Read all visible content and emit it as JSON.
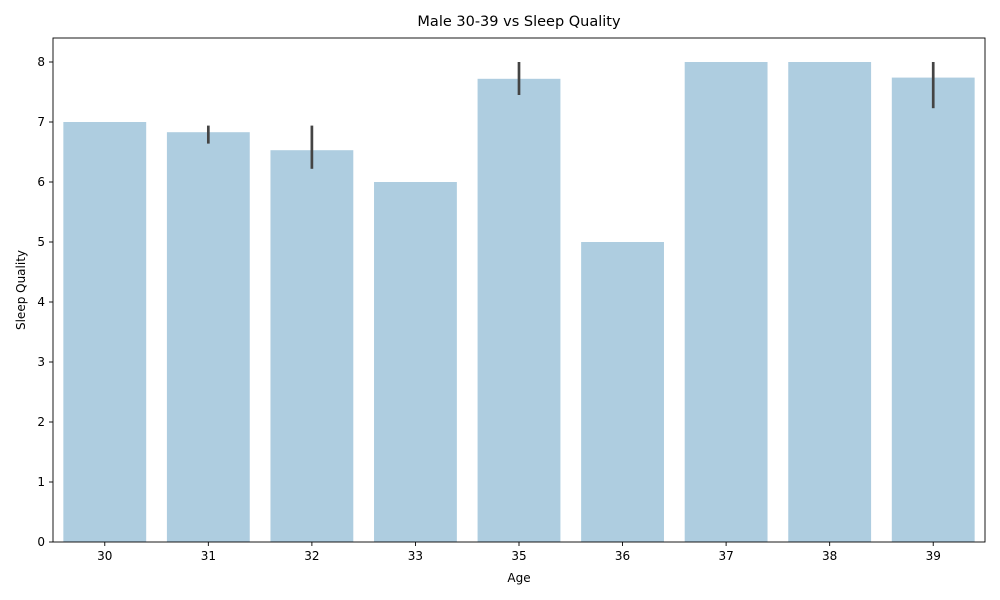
{
  "chart_data": {
    "type": "bar",
    "title": "Male 30-39 vs Sleep Quality",
    "xlabel": "Age",
    "ylabel": "Sleep Quality",
    "categories": [
      "30",
      "31",
      "32",
      "33",
      "35",
      "36",
      "37",
      "38",
      "39"
    ],
    "values": [
      7.0,
      6.83,
      6.53,
      6.0,
      7.72,
      5.0,
      8.0,
      8.0,
      7.74
    ],
    "error_bars": [
      null,
      [
        6.64,
        6.94
      ],
      [
        6.22,
        6.94
      ],
      null,
      [
        7.45,
        8.0
      ],
      null,
      null,
      null,
      [
        7.23,
        8.0
      ]
    ],
    "ylim": [
      0,
      8.4
    ],
    "yticks": [
      0,
      1,
      2,
      3,
      4,
      5,
      6,
      7,
      8
    ],
    "bar_color": "#aecde0",
    "errorbar_color": "#444444",
    "grid": false,
    "legend": "none"
  }
}
